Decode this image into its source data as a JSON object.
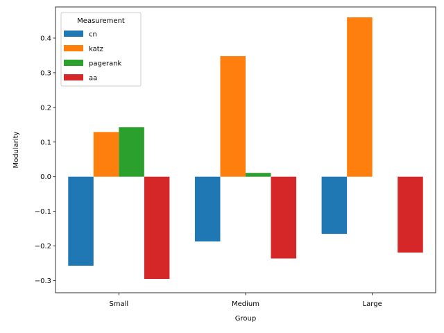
{
  "chart_data": {
    "type": "bar",
    "title": "",
    "xlabel": "Group",
    "ylabel": "Modularity",
    "categories": [
      "Small",
      "Medium",
      "Large"
    ],
    "series": [
      {
        "name": "cn",
        "color": "#1f77b4",
        "values": [
          -0.257,
          -0.187,
          -0.165
        ]
      },
      {
        "name": "katz",
        "color": "#ff7f0e",
        "values": [
          0.129,
          0.348,
          0.46
        ]
      },
      {
        "name": "pagerank",
        "color": "#2ca02c",
        "values": [
          0.143,
          0.011,
          0.0
        ]
      },
      {
        "name": "aa",
        "color": "#d62728",
        "values": [
          -0.295,
          -0.236,
          -0.219
        ]
      }
    ],
    "ylim": [
      -0.335,
      0.49
    ],
    "yticks": [
      -0.3,
      -0.2,
      -0.1,
      0.0,
      0.1,
      0.2,
      0.3,
      0.4
    ],
    "ytick_labels": [
      "−0.3",
      "−0.2",
      "−0.1",
      "0.0",
      "0.1",
      "0.2",
      "0.3",
      "0.4"
    ],
    "grid": false,
    "legend": {
      "title": "Measurement",
      "placement": "top-left"
    }
  }
}
